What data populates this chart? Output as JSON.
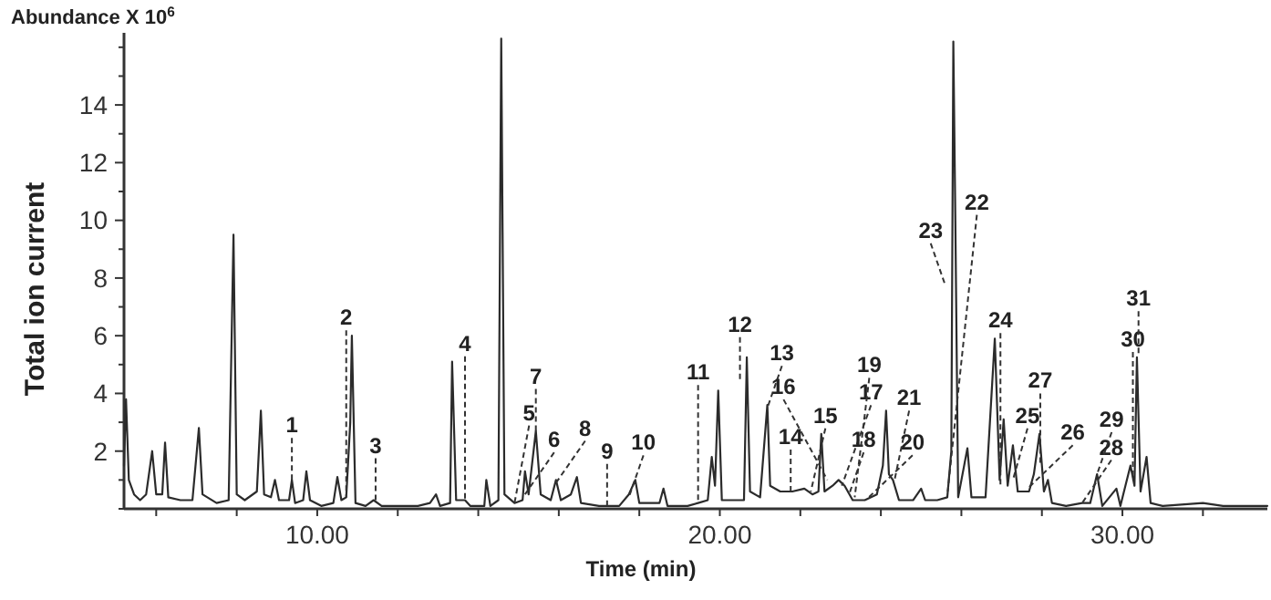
{
  "chart_data": {
    "type": "line",
    "title": "Abundance X 10$^{6}$",
    "xlabel": "Time (min)",
    "ylabel": "Total ion current",
    "xlim": [
      5.2,
      33.6
    ],
    "ylim": [
      0,
      16.5
    ],
    "xticks": [
      {
        "value": 6,
        "label": null
      },
      {
        "value": 8,
        "label": null
      },
      {
        "value": 10,
        "label": "10.00"
      },
      {
        "value": 12,
        "label": null
      },
      {
        "value": 14,
        "label": null
      },
      {
        "value": 16,
        "label": null
      },
      {
        "value": 18,
        "label": null
      },
      {
        "value": 20,
        "label": "20.00"
      },
      {
        "value": 22,
        "label": null
      },
      {
        "value": 24,
        "label": null
      },
      {
        "value": 26,
        "label": null
      },
      {
        "value": 28,
        "label": null
      },
      {
        "value": 30,
        "label": "30.00"
      },
      {
        "value": 32,
        "label": null
      }
    ],
    "yticks": [
      {
        "value": 0,
        "label": null
      },
      {
        "value": 1,
        "label": null
      },
      2,
      {
        "value": 3,
        "label": null
      },
      4,
      {
        "value": 5,
        "label": null
      },
      6,
      {
        "value": 7,
        "label": null
      },
      8,
      {
        "value": 9,
        "label": null
      },
      10,
      {
        "value": 11,
        "label": null
      },
      12,
      {
        "value": 13,
        "label": null
      },
      14,
      {
        "value": 15,
        "label": null
      },
      {
        "value": 16,
        "label": null
      }
    ],
    "grid": false,
    "marker": "none",
    "line_style": "solid",
    "series": [
      {
        "color": "#2b2b2b",
        "x": [
          5.2,
          5.25,
          5.32,
          5.45,
          5.6,
          5.75,
          5.9,
          6.0,
          6.15,
          6.22,
          6.3,
          6.6,
          6.9,
          7.06,
          7.15,
          7.5,
          7.8,
          7.92,
          8.0,
          8.2,
          8.5,
          8.6,
          8.68,
          8.85,
          8.95,
          9.05,
          9.3,
          9.37,
          9.45,
          9.65,
          9.73,
          9.82,
          10.1,
          10.4,
          10.5,
          10.6,
          10.72,
          10.82,
          10.86,
          10.95,
          11.2,
          11.4,
          11.6,
          12.0,
          12.5,
          12.8,
          12.95,
          13.05,
          13.3,
          13.35,
          13.45,
          13.67,
          13.8,
          14.15,
          14.2,
          14.3,
          14.5,
          14.57,
          14.65,
          14.9,
          15.1,
          15.16,
          15.25,
          15.43,
          15.55,
          15.8,
          15.93,
          16.05,
          16.3,
          16.45,
          16.55,
          17.0,
          17.2,
          17.5,
          17.74,
          17.9,
          18.0,
          18.5,
          18.6,
          18.7,
          19.2,
          19.46,
          19.7,
          19.8,
          19.88,
          19.96,
          20.05,
          20.3,
          20.6,
          20.67,
          20.75,
          21.0,
          21.18,
          21.25,
          21.5,
          21.8,
          22.1,
          22.3,
          22.45,
          22.52,
          22.6,
          22.8,
          22.95,
          23.1,
          23.3,
          23.6,
          23.9,
          24.05,
          24.13,
          24.2,
          24.3,
          24.45,
          24.8,
          25.0,
          25.1,
          25.4,
          25.65,
          25.75,
          25.8,
          25.85,
          25.92,
          26.15,
          26.25,
          26.6,
          26.83,
          26.95,
          27.05,
          27.15,
          27.28,
          27.4,
          27.68,
          27.8,
          27.94,
          28.05,
          28.15,
          28.25,
          28.6,
          29.0,
          29.2,
          29.37,
          29.5,
          29.85,
          29.95,
          30.2,
          30.3,
          30.36,
          30.45,
          30.6,
          30.7,
          31.0,
          32.0,
          32.5,
          33.6
        ],
        "values": [
          1.5,
          3.8,
          1.0,
          0.5,
          0.3,
          0.5,
          2.0,
          0.5,
          0.5,
          2.3,
          0.4,
          0.3,
          0.3,
          2.8,
          0.5,
          0.2,
          0.3,
          9.5,
          0.5,
          0.3,
          0.6,
          3.4,
          0.5,
          0.4,
          1.0,
          0.3,
          0.3,
          1.0,
          0.2,
          0.3,
          1.3,
          0.3,
          0.1,
          0.2,
          1.1,
          0.3,
          0.4,
          3.0,
          6.0,
          0.2,
          0.1,
          0.3,
          0.1,
          0.1,
          0.1,
          0.2,
          0.5,
          0.1,
          0.2,
          5.1,
          0.3,
          0.3,
          0.1,
          0.1,
          1.0,
          0.1,
          0.3,
          16.3,
          0.5,
          0.2,
          0.3,
          1.3,
          0.5,
          2.7,
          0.5,
          0.3,
          1.0,
          0.3,
          0.5,
          1.1,
          0.2,
          0.1,
          0.1,
          0.1,
          0.5,
          1.0,
          0.2,
          0.2,
          0.7,
          0.1,
          0.1,
          0.2,
          0.3,
          1.8,
          0.8,
          4.1,
          0.3,
          0.3,
          0.3,
          5.25,
          0.6,
          0.4,
          3.6,
          0.8,
          0.6,
          0.6,
          0.7,
          0.5,
          0.6,
          2.6,
          0.6,
          0.8,
          1.0,
          0.8,
          0.3,
          0.3,
          0.5,
          1.5,
          3.4,
          1.2,
          1.0,
          0.3,
          0.3,
          0.7,
          0.3,
          0.3,
          0.4,
          2.0,
          16.2,
          10.0,
          0.4,
          2.1,
          0.4,
          0.4,
          5.9,
          1.0,
          3.1,
          0.8,
          2.2,
          0.6,
          0.6,
          1.2,
          2.6,
          0.6,
          1.0,
          0.2,
          0.1,
          0.2,
          0.2,
          1.2,
          0.1,
          0.7,
          0.1,
          1.5,
          0.8,
          5.25,
          0.6,
          1.8,
          0.2,
          0.1,
          0.2,
          0.1,
          0.1
        ]
      }
    ],
    "annotations": [
      {
        "text": "1",
        "x": 9.37,
        "y": 1.0
      },
      {
        "text": "2",
        "x": 10.72,
        "y": 0.4
      },
      {
        "text": "3",
        "x": 11.45,
        "y": 0.3
      },
      {
        "text": "4",
        "x": 13.67,
        "y": 0.3
      },
      {
        "text": "5",
        "x": 14.9,
        "y": 0.2
      },
      {
        "text": "6",
        "x": 15.16,
        "y": 0.5
      },
      {
        "text": "7",
        "x": 15.43,
        "y": 2.7
      },
      {
        "text": "8",
        "x": 15.93,
        "y": 0.9
      },
      {
        "text": "9",
        "x": 17.2,
        "y": 0.1
      },
      {
        "text": "10",
        "x": 17.74,
        "y": 0.4
      },
      {
        "text": "11",
        "x": 19.46,
        "y": 0.2
      },
      {
        "text": "12",
        "x": 20.5,
        "y": 4.5
      },
      {
        "text": "13",
        "x": 21.18,
        "y": 3.5
      },
      {
        "text": "14",
        "x": 21.76,
        "y": 0.6
      },
      {
        "text": "15",
        "x": 22.26,
        "y": 0.6
      },
      {
        "text": "16",
        "x": 22.67,
        "y": 1.0
      },
      {
        "text": "17",
        "x": 23.03,
        "y": 0.8
      },
      {
        "text": "18",
        "x": 23.21,
        "y": 0.5
      },
      {
        "text": "19",
        "x": 23.35,
        "y": 0.4
      },
      {
        "text": "20",
        "x": 23.7,
        "y": 0.4
      },
      {
        "text": "21",
        "x": 24.34,
        "y": 1.0
      },
      {
        "text": "22",
        "x": 25.66,
        "y": 0.6
      },
      {
        "text": "23",
        "x": 25.6,
        "y": 7.75
      },
      {
        "text": "24",
        "x": 26.97,
        "y": 0.75
      },
      {
        "text": "25",
        "x": 27.28,
        "y": 1.0
      },
      {
        "text": "26",
        "x": 27.68,
        "y": 0.75
      },
      {
        "text": "27",
        "x": 27.96,
        "y": 1.6
      },
      {
        "text": "28",
        "x": 29.0,
        "y": 0.2
      },
      {
        "text": "29",
        "x": 29.37,
        "y": 1.2
      },
      {
        "text": "30",
        "x": 30.26,
        "y": 1.0
      },
      {
        "text": "31",
        "x": 30.4,
        "y": 5.4
      }
    ]
  }
}
